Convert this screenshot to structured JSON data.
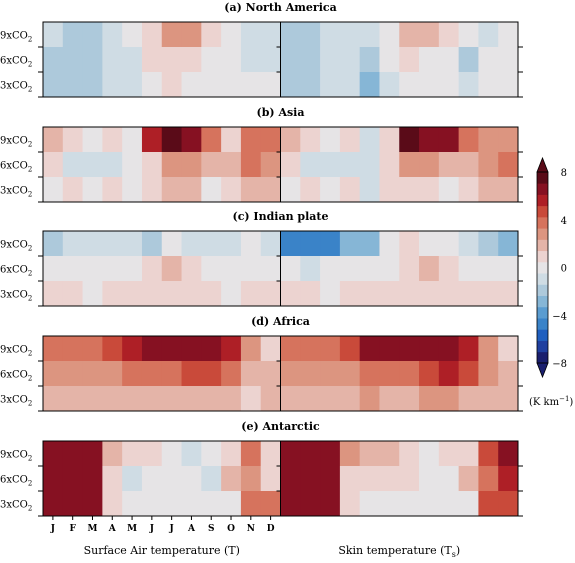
{
  "chart_data": {
    "type": "heatmap",
    "months": [
      "J",
      "F",
      "M",
      "A",
      "M",
      "J",
      "J",
      "A",
      "S",
      "O",
      "N",
      "D"
    ],
    "scenarios": [
      "9xCO2",
      "6xCO2",
      "3xCO2"
    ],
    "scenario_labels": [
      {
        "base": "9xCO",
        "sub": "2"
      },
      {
        "base": "6xCO",
        "sub": "2"
      },
      {
        "base": "3xCO",
        "sub": "2"
      }
    ],
    "xlabels": {
      "left": {
        "base": "Surface Air temperature (T)",
        "sub": ""
      },
      "right": {
        "base": "Skin temperature (T",
        "sub": "s",
        "tail": ")"
      }
    },
    "colorbar": {
      "range": [
        -8,
        8
      ],
      "step": 1,
      "ticks": [
        "8",
        "4",
        "0",
        "−4",
        "−8"
      ],
      "tick_values": [
        8,
        4,
        0,
        -4,
        -8
      ],
      "unit": {
        "base": "(K km",
        "sup": "−1",
        "tail": ")"
      },
      "colors": [
        "#1a1f6e",
        "#1f3f9f",
        "#1f5fbf",
        "#3a83c8",
        "#5a9cd0",
        "#86b6d6",
        "#adc9db",
        "#cfdce4",
        "#e6e4e6",
        "#ecd3d0",
        "#e4b4a8",
        "#dc9580",
        "#d6735d",
        "#c94a3a",
        "#ae1f26",
        "#861122",
        "#5a0b18"
      ]
    },
    "panels": [
      {
        "title": "(a) North America",
        "T": [
          [
            -1,
            -2,
            -2,
            -1,
            0,
            1,
            3,
            3,
            1,
            0,
            -1,
            -1
          ],
          [
            -2,
            -2,
            -2,
            -1,
            -1,
            1,
            1,
            1,
            0,
            0,
            -1,
            -1
          ],
          [
            -2,
            -2,
            -2,
            -1,
            -1,
            0,
            1,
            0,
            0,
            0,
            0,
            0
          ]
        ],
        "Ts": [
          [
            -2,
            -2,
            -1,
            -1,
            -1,
            0,
            2,
            2,
            1,
            0,
            -1,
            0
          ],
          [
            -2,
            -2,
            -1,
            -1,
            -2,
            0,
            1,
            0,
            0,
            -2,
            0,
            0
          ],
          [
            -2,
            -2,
            -1,
            -1,
            -3,
            -1,
            0,
            0,
            0,
            -1,
            0,
            0
          ]
        ]
      },
      {
        "title": "(b) Asia",
        "T": [
          [
            2,
            1,
            0,
            1,
            0,
            6,
            8,
            7,
            4,
            1,
            4,
            4
          ],
          [
            1,
            -1,
            -1,
            -1,
            0,
            1,
            3,
            3,
            2,
            2,
            4,
            3
          ],
          [
            0,
            1,
            0,
            1,
            0,
            1,
            2,
            2,
            0,
            1,
            2,
            2
          ]
        ],
        "Ts": [
          [
            2,
            1,
            0,
            1,
            -1,
            1,
            8,
            7,
            7,
            4,
            3,
            3
          ],
          [
            1,
            -1,
            -1,
            -1,
            -1,
            1,
            3,
            3,
            2,
            2,
            3,
            4
          ],
          [
            0,
            1,
            0,
            1,
            -1,
            1,
            1,
            1,
            0,
            1,
            2,
            2
          ]
        ]
      },
      {
        "title": "(c) Indian plate",
        "T": [
          [
            -2,
            -1,
            -1,
            -1,
            -1,
            -2,
            0,
            -1,
            -1,
            -1,
            0,
            -1
          ],
          [
            0,
            0,
            0,
            0,
            0,
            1,
            2,
            1,
            0,
            0,
            0,
            0
          ],
          [
            1,
            1,
            0,
            1,
            1,
            1,
            1,
            1,
            1,
            0,
            1,
            1
          ]
        ],
        "Ts": [
          [
            -5,
            -5,
            -5,
            -3,
            -3,
            0,
            1,
            0,
            0,
            -1,
            -2,
            -3
          ],
          [
            0,
            -1,
            0,
            0,
            0,
            0,
            1,
            2,
            1,
            0,
            0,
            0
          ],
          [
            1,
            1,
            0,
            1,
            1,
            1,
            1,
            1,
            1,
            1,
            1,
            1
          ]
        ]
      },
      {
        "title": "(d) Africa",
        "T": [
          [
            4,
            4,
            4,
            5,
            6,
            7,
            7,
            7,
            7,
            6,
            3,
            1
          ],
          [
            3,
            3,
            3,
            3,
            4,
            4,
            4,
            5,
            5,
            4,
            2,
            2
          ],
          [
            2,
            2,
            2,
            2,
            2,
            2,
            2,
            2,
            2,
            2,
            1,
            2
          ]
        ],
        "Ts": [
          [
            4,
            4,
            4,
            5,
            7,
            7,
            7,
            7,
            7,
            6,
            3,
            1
          ],
          [
            3,
            3,
            3,
            3,
            4,
            4,
            4,
            5,
            6,
            5,
            3,
            2
          ],
          [
            2,
            2,
            2,
            2,
            3,
            2,
            2,
            3,
            3,
            2,
            2,
            2
          ]
        ]
      },
      {
        "title": "(e) Antarctic",
        "T": [
          [
            7,
            7,
            7,
            2,
            1,
            1,
            0,
            -1,
            0,
            1,
            4,
            1
          ],
          [
            7,
            7,
            7,
            1,
            -1,
            0,
            0,
            0,
            -1,
            2,
            3,
            1
          ],
          [
            7,
            7,
            7,
            1,
            0,
            0,
            0,
            0,
            0,
            0,
            4,
            4
          ]
        ],
        "Ts": [
          [
            7,
            7,
            7,
            3,
            2,
            2,
            1,
            0,
            1,
            1,
            5,
            7
          ],
          [
            7,
            7,
            7,
            1,
            1,
            1,
            1,
            0,
            0,
            2,
            4,
            6
          ],
          [
            7,
            7,
            7,
            1,
            0,
            0,
            0,
            0,
            0,
            0,
            5,
            5
          ]
        ]
      }
    ]
  }
}
